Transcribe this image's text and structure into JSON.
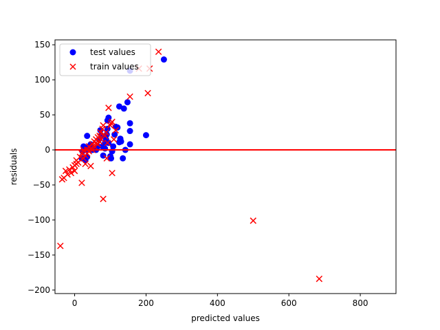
{
  "chart_data": {
    "type": "scatter",
    "xlabel": "predicted values",
    "ylabel": "residuals",
    "xlim": [
      -55,
      900
    ],
    "ylim": [
      -205,
      157
    ],
    "xticks": [
      0,
      200,
      400,
      600,
      800
    ],
    "yticks": [
      -200,
      -150,
      -100,
      -50,
      0,
      50,
      100,
      150
    ],
    "hline": {
      "y": 0,
      "color": "#ff0000"
    },
    "grid": false,
    "legend_position": "top-left",
    "series": [
      {
        "name": "test values",
        "marker": "circle",
        "color": "#0000ff",
        "points": [
          [
            250,
            129
          ],
          [
            155,
            113
          ],
          [
            200,
            21
          ],
          [
            155,
            38
          ],
          [
            155,
            27
          ],
          [
            155,
            8
          ],
          [
            148,
            68
          ],
          [
            138,
            59
          ],
          [
            125,
            62
          ],
          [
            128,
            16
          ],
          [
            125,
            11
          ],
          [
            130,
            12
          ],
          [
            135,
            -12
          ],
          [
            142,
            0
          ],
          [
            115,
            33
          ],
          [
            120,
            32
          ],
          [
            112,
            22
          ],
          [
            108,
            5
          ],
          [
            105,
            -2
          ],
          [
            100,
            -9
          ],
          [
            102,
            -12
          ],
          [
            95,
            46
          ],
          [
            92,
            42
          ],
          [
            90,
            22
          ],
          [
            88,
            15
          ],
          [
            85,
            10
          ],
          [
            80,
            -8
          ],
          [
            78,
            5
          ],
          [
            75,
            20
          ],
          [
            72,
            28
          ],
          [
            68,
            15
          ],
          [
            65,
            5
          ],
          [
            60,
            0
          ],
          [
            55,
            2
          ],
          [
            50,
            0
          ],
          [
            45,
            8
          ],
          [
            40,
            5
          ],
          [
            35,
            20
          ],
          [
            30,
            0
          ],
          [
            25,
            5
          ],
          [
            22,
            -2
          ],
          [
            20,
            -12
          ],
          [
            30,
            -15
          ],
          [
            35,
            -10
          ],
          [
            92,
            30
          ],
          [
            95,
            10
          ],
          [
            85,
            2
          ]
        ]
      },
      {
        "name": "train values",
        "marker": "x",
        "color": "#ff0000",
        "points": [
          [
            685,
            -184
          ],
          [
            500,
            -101
          ],
          [
            -40,
            -137
          ],
          [
            -35,
            -42
          ],
          [
            -30,
            -40
          ],
          [
            -25,
            -30
          ],
          [
            -20,
            -35
          ],
          [
            -15,
            -28
          ],
          [
            -10,
            -33
          ],
          [
            -5,
            -25
          ],
          [
            0,
            -22
          ],
          [
            0,
            -30
          ],
          [
            5,
            -15
          ],
          [
            5,
            -20
          ],
          [
            10,
            -18
          ],
          [
            15,
            -10
          ],
          [
            20,
            -5
          ],
          [
            20,
            -47
          ],
          [
            25,
            -12
          ],
          [
            25,
            0
          ],
          [
            30,
            -20
          ],
          [
            30,
            -8
          ],
          [
            35,
            0
          ],
          [
            35,
            -5
          ],
          [
            40,
            -2
          ],
          [
            40,
            5
          ],
          [
            45,
            -23
          ],
          [
            45,
            2
          ],
          [
            50,
            0
          ],
          [
            50,
            8
          ],
          [
            55,
            5
          ],
          [
            55,
            12
          ],
          [
            60,
            10
          ],
          [
            60,
            15
          ],
          [
            65,
            8
          ],
          [
            65,
            18
          ],
          [
            70,
            12
          ],
          [
            70,
            20
          ],
          [
            72,
            25
          ],
          [
            75,
            15
          ],
          [
            78,
            30
          ],
          [
            80,
            -70
          ],
          [
            80,
            35
          ],
          [
            82,
            22
          ],
          [
            85,
            20
          ],
          [
            88,
            25
          ],
          [
            90,
            -12
          ],
          [
            92,
            10
          ],
          [
            95,
            60
          ],
          [
            100,
            35
          ],
          [
            102,
            38
          ],
          [
            105,
            40
          ],
          [
            105,
            -33
          ],
          [
            110,
            15
          ],
          [
            115,
            28
          ],
          [
            155,
            76
          ],
          [
            205,
            81
          ],
          [
            210,
            116
          ],
          [
            235,
            140
          ],
          [
            180,
            116
          ]
        ]
      }
    ]
  }
}
